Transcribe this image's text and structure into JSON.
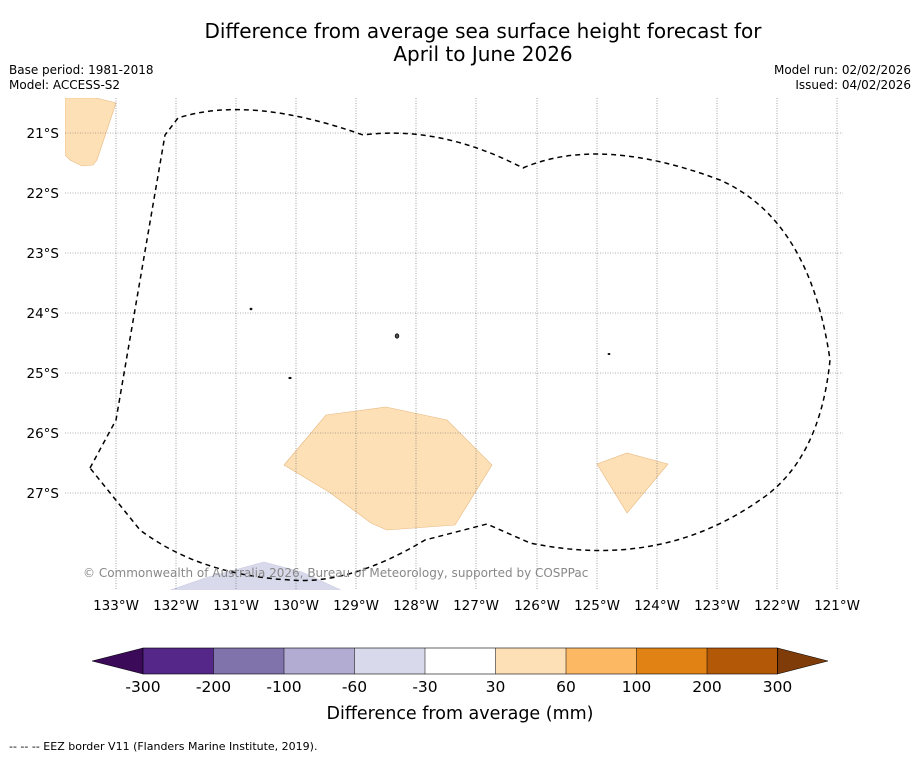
{
  "title": {
    "line1": "Difference from average sea surface height forecast for",
    "line2": "April to June 2026"
  },
  "meta": {
    "base_period": "Base period: 1981-2018",
    "model": "Model: ACCESS-S2",
    "model_run": "Model run: 02/02/2026",
    "issued": "Issued: 04/02/2026"
  },
  "map": {
    "latitude_labels": [
      "21°S",
      "22°S",
      "23°S",
      "24°S",
      "25°S",
      "26°S",
      "27°S"
    ],
    "longitude_labels": [
      "133°W",
      "132°W",
      "131°W",
      "130°W",
      "129°W",
      "128°W",
      "127°W",
      "126°W",
      "125°W",
      "124°W",
      "123°W",
      "122°W",
      "121°W"
    ],
    "copyright": "© Commonwealth of Australia 2026, Bureau of Meteorology, supported by COSPPac"
  },
  "colorbar": {
    "title": "Difference from average (mm)",
    "tick_labels": [
      "-300",
      "-200",
      "-100",
      "-60",
      "-30",
      "30",
      "60",
      "100",
      "200",
      "300"
    ],
    "colors": [
      "#3b0a59",
      "#542788",
      "#8073ac",
      "#b2abd2",
      "#d8daeb",
      "#ffffff",
      "#fee0b6",
      "#fdb863",
      "#e08214",
      "#b35806",
      "#7f3b08"
    ]
  },
  "footer": {
    "eez_note": "--  --  -- EEZ border V11 (Flanders Marine Institute, 2019)."
  }
}
